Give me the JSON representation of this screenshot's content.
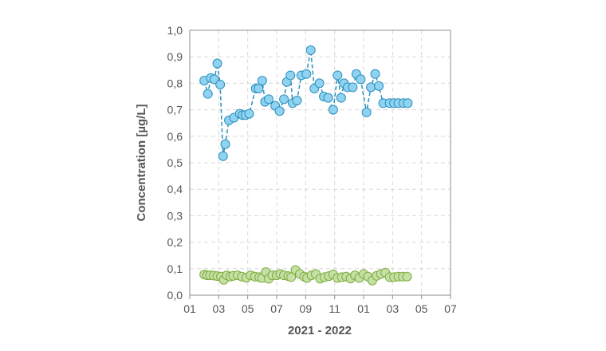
{
  "chart_data": {
    "type": "scatter",
    "xlabel": "2021 - 2022",
    "ylabel": "Concentration [µg/L]",
    "ylim": [
      0,
      1.0
    ],
    "yticks": [
      "0,0",
      "0,1",
      "0,2",
      "0,3",
      "0,4",
      "0,5",
      "0,6",
      "0,7",
      "0,8",
      "0,9",
      "1,0"
    ],
    "xlim": [
      0,
      18
    ],
    "xticks": [
      {
        "pos": 0,
        "label": "01"
      },
      {
        "pos": 2,
        "label": "03"
      },
      {
        "pos": 4,
        "label": "05"
      },
      {
        "pos": 6,
        "label": "07"
      },
      {
        "pos": 8,
        "label": "09"
      },
      {
        "pos": 10,
        "label": "11"
      },
      {
        "pos": 12,
        "label": "01"
      },
      {
        "pos": 14,
        "label": "03"
      },
      {
        "pos": 16,
        "label": "05"
      },
      {
        "pos": 18,
        "label": "07"
      }
    ],
    "grid": true,
    "series": [
      {
        "color": "#8fd3f0",
        "stroke": "#2b8fbe",
        "line": "dashed",
        "x": [
          1.0,
          1.25,
          1.45,
          1.7,
          1.9,
          2.1,
          2.3,
          2.45,
          2.7,
          3.05,
          3.45,
          3.65,
          3.85,
          4.1,
          4.55,
          4.75,
          5.0,
          5.2,
          5.45,
          5.9,
          6.2,
          6.5,
          6.7,
          6.95,
          7.1,
          7.4,
          7.7,
          8.05,
          8.35,
          8.6,
          8.95,
          9.25,
          9.55,
          9.9,
          10.2,
          10.45,
          10.65,
          10.9,
          11.25,
          11.5,
          11.8,
          12.2,
          12.5,
          12.8,
          13.05,
          13.35,
          13.8,
          14.1,
          14.4,
          14.75,
          15.05
        ],
        "y": [
          0.81,
          0.76,
          0.82,
          0.815,
          0.875,
          0.795,
          0.525,
          0.57,
          0.66,
          0.67,
          0.685,
          0.68,
          0.68,
          0.685,
          0.78,
          0.78,
          0.81,
          0.73,
          0.74,
          0.715,
          0.695,
          0.74,
          0.805,
          0.83,
          0.725,
          0.735,
          0.83,
          0.835,
          0.925,
          0.78,
          0.8,
          0.75,
          0.745,
          0.7,
          0.83,
          0.745,
          0.8,
          0.785,
          0.785,
          0.835,
          0.815,
          0.69,
          0.785,
          0.835,
          0.79,
          0.725,
          0.725,
          0.725,
          0.725,
          0.725,
          0.725
        ]
      },
      {
        "color": "#c5e0a5",
        "stroke": "#7cab3c",
        "line": "none",
        "x": [
          1.0,
          1.2,
          1.4,
          1.65,
          1.9,
          2.15,
          2.35,
          2.55,
          2.8,
          3.0,
          3.3,
          3.6,
          3.9,
          4.2,
          4.5,
          4.8,
          5.0,
          5.25,
          5.45,
          5.7,
          6.0,
          6.25,
          6.5,
          6.8,
          7.0,
          7.3,
          7.6,
          7.9,
          8.1,
          8.4,
          8.7,
          9.0,
          9.3,
          9.6,
          9.9,
          10.2,
          10.5,
          10.8,
          11.1,
          11.4,
          11.7,
          12.0,
          12.3,
          12.6,
          12.9,
          13.2,
          13.5,
          13.8,
          14.1,
          14.4,
          14.7,
          15.0
        ],
        "y": [
          0.078,
          0.075,
          0.075,
          0.074,
          0.072,
          0.07,
          0.058,
          0.075,
          0.07,
          0.073,
          0.075,
          0.07,
          0.066,
          0.075,
          0.07,
          0.068,
          0.065,
          0.087,
          0.062,
          0.075,
          0.075,
          0.08,
          0.075,
          0.072,
          0.068,
          0.095,
          0.08,
          0.07,
          0.065,
          0.075,
          0.08,
          0.062,
          0.068,
          0.072,
          0.078,
          0.065,
          0.068,
          0.07,
          0.063,
          0.075,
          0.065,
          0.08,
          0.07,
          0.055,
          0.073,
          0.08,
          0.085,
          0.068,
          0.068,
          0.07,
          0.07,
          0.07
        ]
      }
    ]
  }
}
